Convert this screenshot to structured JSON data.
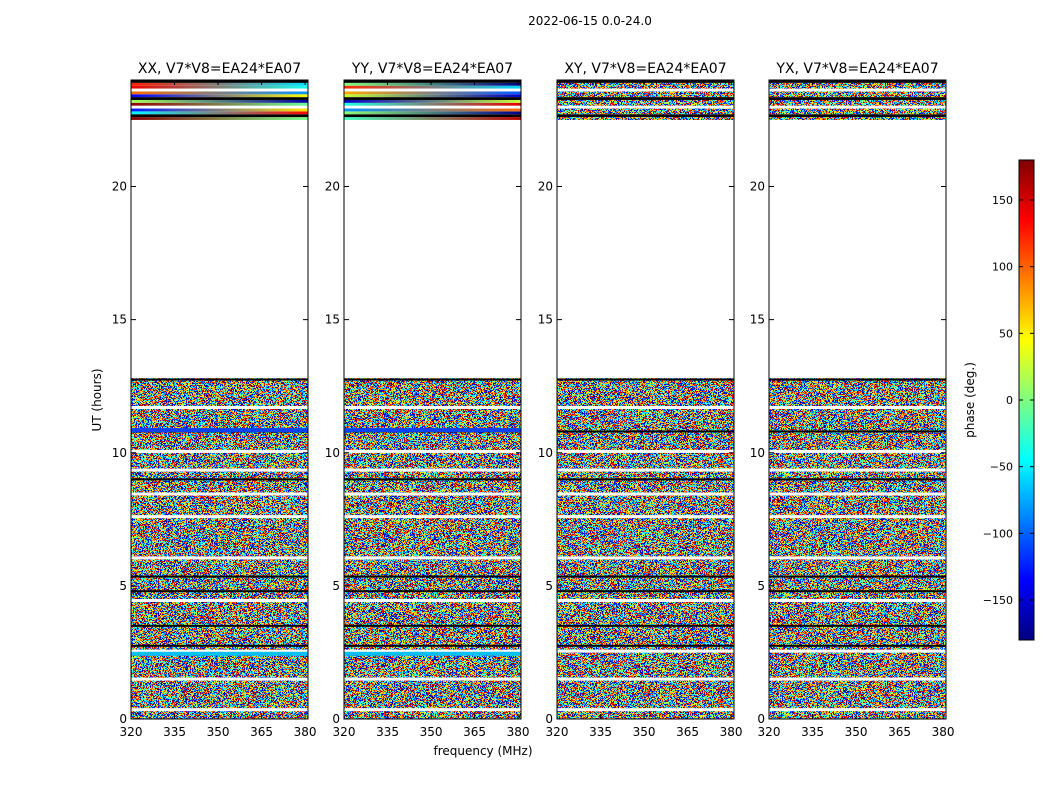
{
  "figure": {
    "suptitle": "2022-06-15 0.0-24.0"
  },
  "chart_data": {
    "type": "heatmap",
    "xlabel": "frequency (MHz)",
    "ylabel": "UT (hours)",
    "xlim": [
      320,
      381
    ],
    "ylim": [
      0,
      24
    ],
    "xticks": [
      320,
      335,
      350,
      365,
      380
    ],
    "yticks": [
      0,
      5,
      10,
      15,
      20
    ],
    "panels": [
      {
        "title": "XX, V7*V8=EA24*EA07",
        "correlation": "XX"
      },
      {
        "title": "YY, V7*V8=EA24*EA07",
        "correlation": "YY"
      },
      {
        "title": "XY, V7*V8=EA24*EA07",
        "correlation": "XY"
      },
      {
        "title": "YX, V7*V8=EA24*EA07",
        "correlation": "YX"
      }
    ],
    "data_time_ranges_hours": [
      [
        0,
        12.8
      ],
      [
        22.5,
        24
      ]
    ],
    "flagged_gap_hours": [
      12.8,
      22.5
    ],
    "colorbar": {
      "label": "phase (deg.)",
      "range": [
        -180,
        180
      ],
      "ticks": [
        150,
        100,
        50,
        0,
        -50,
        -100,
        -150
      ],
      "tick_labels": [
        "150",
        "100",
        "50",
        "0",
        "−50",
        "−100",
        "−150"
      ],
      "colormap": "jet",
      "colors": [
        "#00007f",
        "#0000ff",
        "#007fff",
        "#00ffff",
        "#7fff7f",
        "#ffff00",
        "#ff7f00",
        "#ff0000",
        "#7f0000"
      ]
    }
  }
}
